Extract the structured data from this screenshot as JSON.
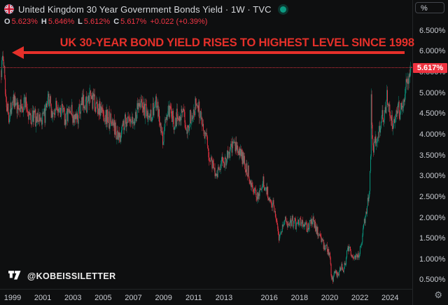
{
  "header": {
    "title": "United Kingdom 30 Year Government Bonds Yield · 1W · TVC",
    "flag_icon": "uk-flag",
    "status_dot_color": "#0c9a82",
    "ohlc": {
      "o_label": "O",
      "o_value": "5.623%",
      "h_label": "H",
      "h_value": "5.646%",
      "l_label": "L",
      "l_value": "5.612%",
      "c_label": "C",
      "c_value": "5.617%",
      "change": "+0.022 (+0.39%)",
      "value_color": "#f23645"
    }
  },
  "annotation": {
    "headline": "UK 30-YEAR BOND YIELD RISES TO HIGHEST LEVEL SINCE 1998",
    "color": "#e5302a",
    "arrow_direction": "left"
  },
  "price_scale": {
    "unit_button_label": "%",
    "labels": [
      "6.500%",
      "6.000%",
      "5.500%",
      "5.000%",
      "4.500%",
      "4.000%",
      "3.500%",
      "3.000%",
      "2.500%",
      "2.000%",
      "1.500%",
      "1.000%",
      "0.500%"
    ],
    "last_price_label": "5.617%",
    "last_price": 5.617,
    "badge_color": "#ef323f",
    "gear_icon": "price-scale-settings"
  },
  "time_scale": {
    "labels": [
      "1999",
      "2001",
      "2003",
      "2005",
      "2007",
      "2009",
      "2011",
      "2013",
      "2016",
      "2018",
      "2020",
      "2022",
      "2024"
    ]
  },
  "watermark": {
    "logo_icon": "tradingview-logo",
    "handle": "@KOBEISSILETTER"
  },
  "chart_data": {
    "type": "candlestick",
    "timeframe": "1W",
    "title": "United Kingdom 30 Year Government Bonds Yield",
    "ylabel": "%",
    "ylim": [
      0.3,
      7.2
    ],
    "xlim": [
      1998.2,
      2025.5
    ],
    "grid": false,
    "up_color": "#089981",
    "down_color": "#f23645",
    "last_candle": {
      "open": 5.623,
      "high": 5.646,
      "low": 5.612,
      "close": 5.617
    },
    "yield_path_anchors": [
      [
        1998.25,
        5.55
      ],
      [
        1998.33,
        5.9
      ],
      [
        1998.42,
        5.62
      ],
      [
        1998.5,
        5.2
      ],
      [
        1998.58,
        4.85
      ],
      [
        1998.68,
        4.6
      ],
      [
        1998.8,
        4.45
      ],
      [
        1998.92,
        4.75
      ],
      [
        1999.04,
        5.0
      ],
      [
        1999.17,
        4.7
      ],
      [
        1999.3,
        4.55
      ],
      [
        1999.45,
        4.72
      ],
      [
        1999.6,
        4.6
      ],
      [
        1999.75,
        4.85
      ],
      [
        1999.9,
        4.7
      ],
      [
        2000.05,
        4.55
      ],
      [
        2000.2,
        4.35
      ],
      [
        2000.4,
        4.5
      ],
      [
        2000.6,
        4.35
      ],
      [
        2000.8,
        4.45
      ],
      [
        2000.95,
        4.3
      ],
      [
        2001.1,
        4.45
      ],
      [
        2001.25,
        4.6
      ],
      [
        2001.4,
        4.85
      ],
      [
        2001.55,
        4.6
      ],
      [
        2001.7,
        4.45
      ],
      [
        2001.85,
        4.65
      ],
      [
        2002.0,
        4.75
      ],
      [
        2002.15,
        4.65
      ],
      [
        2002.3,
        4.55
      ],
      [
        2002.5,
        4.4
      ],
      [
        2002.7,
        4.5
      ],
      [
        2002.85,
        4.6
      ],
      [
        2003.0,
        4.4
      ],
      [
        2003.15,
        4.3
      ],
      [
        2003.35,
        4.5
      ],
      [
        2003.55,
        4.65
      ],
      [
        2003.75,
        4.85
      ],
      [
        2003.9,
        4.75
      ],
      [
        2004.05,
        4.8
      ],
      [
        2004.2,
        4.9
      ],
      [
        2004.4,
        4.75
      ],
      [
        2004.6,
        4.7
      ],
      [
        2004.8,
        4.6
      ],
      [
        2005.0,
        4.5
      ],
      [
        2005.2,
        4.45
      ],
      [
        2005.4,
        4.35
      ],
      [
        2005.6,
        4.3
      ],
      [
        2005.8,
        4.15
      ],
      [
        2006.0,
        3.85
      ],
      [
        2006.2,
        4.1
      ],
      [
        2006.4,
        4.35
      ],
      [
        2006.6,
        4.35
      ],
      [
        2006.8,
        4.2
      ],
      [
        2007.0,
        4.3
      ],
      [
        2007.2,
        4.5
      ],
      [
        2007.4,
        4.9
      ],
      [
        2007.55,
        4.7
      ],
      [
        2007.7,
        4.6
      ],
      [
        2007.85,
        4.5
      ],
      [
        2008.0,
        4.4
      ],
      [
        2008.15,
        4.5
      ],
      [
        2008.3,
        4.6
      ],
      [
        2008.5,
        4.75
      ],
      [
        2008.65,
        4.5
      ],
      [
        2008.8,
        4.1
      ],
      [
        2008.95,
        3.85
      ],
      [
        2009.1,
        4.3
      ],
      [
        2009.3,
        4.55
      ],
      [
        2009.5,
        4.45
      ],
      [
        2009.7,
        4.3
      ],
      [
        2009.9,
        4.45
      ],
      [
        2010.1,
        4.55
      ],
      [
        2010.35,
        4.4
      ],
      [
        2010.6,
        4.2
      ],
      [
        2010.8,
        4.45
      ],
      [
        2011.0,
        4.65
      ],
      [
        2011.2,
        4.75
      ],
      [
        2011.4,
        4.55
      ],
      [
        2011.6,
        4.3
      ],
      [
        2011.8,
        3.9
      ],
      [
        2012.0,
        3.5
      ],
      [
        2012.2,
        3.35
      ],
      [
        2012.45,
        3.1
      ],
      [
        2012.7,
        3.2
      ],
      [
        2012.9,
        3.35
      ],
      [
        2013.1,
        3.4
      ],
      [
        2013.35,
        3.55
      ],
      [
        2013.6,
        3.75
      ],
      [
        2013.8,
        3.7
      ],
      [
        2014.0,
        3.6
      ],
      [
        2014.2,
        3.45
      ],
      [
        2014.45,
        3.25
      ],
      [
        2014.7,
        3.0
      ],
      [
        2014.9,
        2.75
      ],
      [
        2015.1,
        2.5
      ],
      [
        2015.35,
        2.65
      ],
      [
        2015.6,
        2.85
      ],
      [
        2015.85,
        2.65
      ],
      [
        2016.05,
        2.45
      ],
      [
        2016.3,
        2.3
      ],
      [
        2016.5,
        1.95
      ],
      [
        2016.62,
        1.55
      ],
      [
        2016.8,
        1.75
      ],
      [
        2017.0,
        1.95
      ],
      [
        2017.25,
        1.85
      ],
      [
        2017.5,
        1.95
      ],
      [
        2017.75,
        1.85
      ],
      [
        2018.0,
        1.95
      ],
      [
        2018.25,
        1.85
      ],
      [
        2018.5,
        1.75
      ],
      [
        2018.7,
        1.9
      ],
      [
        2018.9,
        1.95
      ],
      [
        2019.1,
        1.75
      ],
      [
        2019.35,
        1.55
      ],
      [
        2019.6,
        1.35
      ],
      [
        2019.8,
        1.25
      ],
      [
        2020.0,
        1.1
      ],
      [
        2020.1,
        0.6
      ],
      [
        2020.2,
        0.5
      ],
      [
        2020.32,
        0.75
      ],
      [
        2020.45,
        0.62
      ],
      [
        2020.6,
        0.7
      ],
      [
        2020.75,
        0.85
      ],
      [
        2020.9,
        0.78
      ],
      [
        2021.05,
        0.95
      ],
      [
        2021.2,
        1.3
      ],
      [
        2021.35,
        1.25
      ],
      [
        2021.5,
        1.1
      ],
      [
        2021.65,
        1.0
      ],
      [
        2021.8,
        1.15
      ],
      [
        2021.95,
        1.1
      ],
      [
        2022.1,
        1.45
      ],
      [
        2022.25,
        1.8
      ],
      [
        2022.4,
        2.1
      ],
      [
        2022.55,
        2.5
      ],
      [
        2022.65,
        2.8
      ],
      [
        2022.72,
        3.6
      ],
      [
        2022.758,
        5.15
      ],
      [
        2022.8,
        3.9
      ],
      [
        2022.87,
        3.6
      ],
      [
        2022.95,
        3.8
      ],
      [
        2023.1,
        3.95
      ],
      [
        2023.3,
        4.2
      ],
      [
        2023.5,
        4.45
      ],
      [
        2023.65,
        4.6
      ],
      [
        2023.8,
        4.95
      ],
      [
        2023.9,
        4.75
      ],
      [
        2024.05,
        4.45
      ],
      [
        2024.2,
        4.25
      ],
      [
        2024.35,
        4.55
      ],
      [
        2024.5,
        4.7
      ],
      [
        2024.65,
        4.55
      ],
      [
        2024.8,
        4.75
      ],
      [
        2024.95,
        4.95
      ],
      [
        2025.05,
        5.25
      ],
      [
        2025.12,
        5.15
      ],
      [
        2025.2,
        5.3
      ],
      [
        2025.3,
        5.45
      ],
      [
        2025.38,
        5.62
      ]
    ]
  }
}
